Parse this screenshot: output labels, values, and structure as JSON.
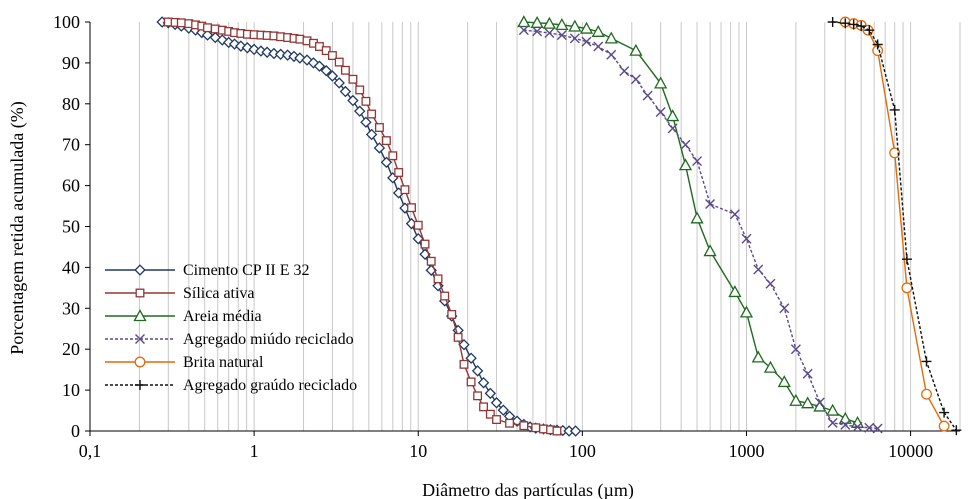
{
  "chart_data": {
    "type": "scatter",
    "xlabel": "Diâmetro das partículas (µm)",
    "ylabel": "Porcentagem retida acumulada (%)",
    "xscale": "log",
    "xlim": [
      0.1,
      20000
    ],
    "ylim": [
      0,
      100
    ],
    "x_ticks": [
      "0,1",
      "1",
      "10",
      "100",
      "1000",
      "10000"
    ],
    "y_ticks": [
      "0",
      "10",
      "20",
      "30",
      "40",
      "50",
      "60",
      "70",
      "80",
      "90",
      "100"
    ],
    "grid": "vertical minor log gridlines",
    "legend_position": "bottom-left",
    "series": [
      {
        "name": "Cimento CP II E 32",
        "color": "#1f3864",
        "marker": "diamond",
        "line": "solid",
        "x": [
          0.275,
          0.3,
          0.33,
          0.36,
          0.4,
          0.44,
          0.48,
          0.52,
          0.58,
          0.64,
          0.7,
          0.76,
          0.83,
          0.91,
          1.0,
          1.1,
          1.2,
          1.32,
          1.45,
          1.6,
          1.75,
          1.9,
          2.1,
          2.3,
          2.5,
          2.75,
          3.0,
          3.3,
          3.6,
          4.0,
          4.4,
          4.8,
          5.2,
          5.8,
          6.4,
          7.0,
          7.6,
          8.3,
          9.1,
          10.0,
          11.0,
          12.0,
          13.2,
          14.5,
          16.0,
          17.5,
          19.0,
          21.0,
          23.0,
          25.0,
          27.5,
          30.0,
          33.0,
          36.0,
          40.0,
          44.0,
          48.0,
          52.0,
          58.0,
          64.0,
          70.0,
          76.0,
          83.0,
          91.0
        ],
        "y": [
          100,
          99.8,
          99.4,
          99,
          98.5,
          98,
          97.4,
          96.8,
          96.2,
          95.6,
          95,
          94.6,
          94.1,
          93.7,
          93.3,
          92.9,
          92.6,
          92.3,
          92.1,
          91.9,
          91.6,
          91.2,
          90.7,
          90,
          89.2,
          88.1,
          86.8,
          85.1,
          83,
          80.8,
          78.2,
          75.5,
          72.5,
          69.2,
          65.7,
          61.9,
          58.2,
          54.5,
          50.7,
          47,
          43.2,
          39.3,
          35.5,
          31.8,
          28.1,
          24.6,
          21.1,
          17.8,
          14.7,
          11.8,
          9.2,
          6.9,
          5.1,
          3.6,
          2.4,
          1.6,
          1,
          0.7,
          0.5,
          0.3,
          0.2,
          0.1,
          0,
          0
        ]
      },
      {
        "name": "Sílica ativa",
        "color": "#943634",
        "marker": "square",
        "line": "solid",
        "x": [
          0.3,
          0.33,
          0.36,
          0.4,
          0.44,
          0.48,
          0.52,
          0.58,
          0.64,
          0.7,
          0.76,
          0.83,
          0.91,
          1.0,
          1.1,
          1.2,
          1.32,
          1.45,
          1.6,
          1.75,
          1.9,
          2.1,
          2.3,
          2.5,
          2.75,
          3.0,
          3.3,
          3.6,
          4.0,
          4.4,
          4.8,
          5.2,
          5.8,
          6.4,
          7.0,
          7.6,
          8.3,
          9.1,
          10.0,
          11.0,
          12.0,
          13.2,
          14.5,
          16.0,
          17.5,
          19.0,
          21.0,
          23.0,
          25.0,
          27.5,
          30.0,
          36.0,
          44.0,
          52.0,
          58.0,
          64.0,
          70.0
        ],
        "y": [
          100,
          99.9,
          99.8,
          99.6,
          99.3,
          99,
          98.6,
          98.3,
          98,
          97.7,
          97.4,
          97.2,
          97,
          96.9,
          96.8,
          96.7,
          96.6,
          96.4,
          96.2,
          96,
          95.8,
          95.4,
          94.8,
          94,
          93,
          91.8,
          90.2,
          88.2,
          86,
          83.4,
          80.6,
          77.5,
          74.2,
          71,
          67.3,
          63.2,
          59,
          54.6,
          50.3,
          45.7,
          41.5,
          37.2,
          33,
          28.5,
          22.9,
          16.3,
          12,
          8.6,
          5.9,
          4.1,
          2.8,
          1.9,
          1.3,
          0.8,
          0.5,
          0.3,
          0
        ]
      },
      {
        "name": "Areia média",
        "color": "#1e6b1e",
        "marker": "triangle",
        "line": "solid",
        "x": [
          44,
          53,
          63,
          75,
          90,
          106,
          125,
          150,
          212,
          300,
          355,
          425,
          500,
          600,
          850,
          1000,
          1180,
          1400,
          1700,
          2000,
          2360,
          2800,
          3350,
          4000,
          4750
        ],
        "y": [
          100,
          99.8,
          99.6,
          99.3,
          98.9,
          98.4,
          97.6,
          96,
          93,
          85,
          77,
          65,
          52,
          44,
          34,
          29,
          18,
          15.5,
          12,
          7.4,
          6.8,
          6,
          5,
          3,
          2
        ]
      },
      {
        "name": "Agregado miúdo reciclado",
        "color": "#5b4a8a",
        "marker": "x",
        "line": "dashed",
        "x": [
          44,
          53,
          63,
          75,
          90,
          106,
          125,
          150,
          180,
          212,
          250,
          300,
          355,
          425,
          500,
          600,
          850,
          1000,
          1180,
          1400,
          1700,
          2000,
          2360,
          2800,
          3350,
          4000,
          4750,
          5600,
          6300
        ],
        "y": [
          98,
          97.7,
          97.3,
          96.8,
          96,
          95.2,
          94,
          92,
          88,
          86,
          82,
          78,
          74,
          70,
          66,
          55.5,
          53,
          47,
          39.5,
          36,
          30,
          20,
          14,
          7,
          2,
          1.5,
          1,
          0.8,
          0.6
        ]
      },
      {
        "name": "Brita natural",
        "color": "#e36c09",
        "marker": "circle",
        "line": "solid",
        "x": [
          4000,
          4500,
          5000,
          5500,
          6300,
          8000,
          9500,
          12500,
          16000
        ],
        "y": [
          100,
          99.6,
          99.2,
          98,
          93,
          68,
          35,
          9,
          1.2
        ]
      },
      {
        "name": "Agregado graúdo reciclado",
        "color": "#111111",
        "marker": "plus",
        "line": "dashed",
        "x": [
          3350,
          4000,
          4500,
          5000,
          5600,
          6300,
          8000,
          9500,
          12500,
          16000,
          19000
        ],
        "y": [
          100,
          99.7,
          99.4,
          99,
          98,
          94.5,
          78.5,
          42,
          17,
          4.5,
          0.2
        ]
      }
    ]
  }
}
